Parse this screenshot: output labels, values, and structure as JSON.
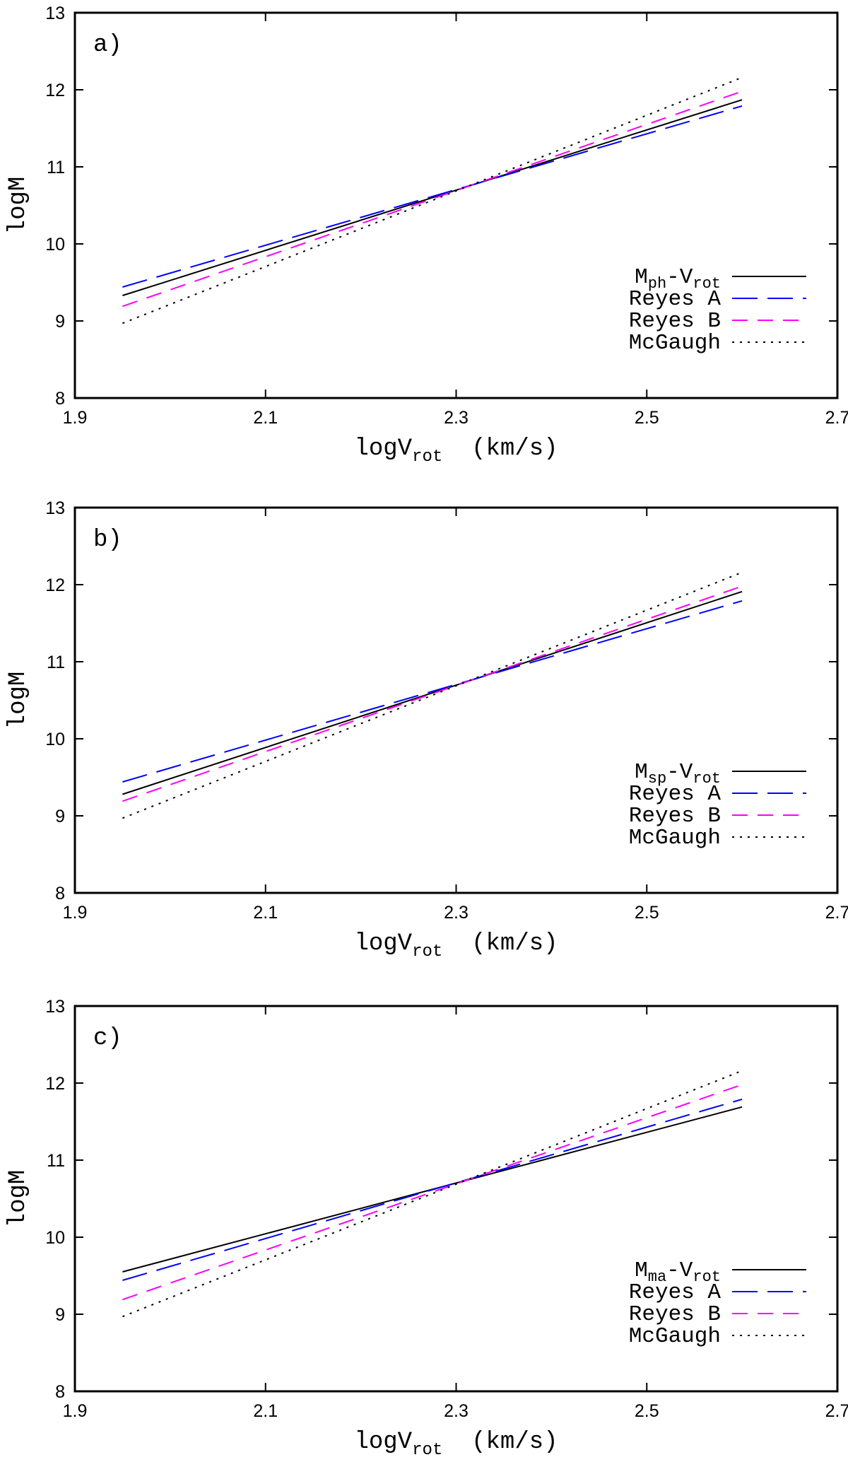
{
  "chart_data": [
    {
      "type": "line",
      "panel_label": "a)",
      "xlabel": {
        "main": "logV",
        "sub": "rot",
        "unit": "(km/s)"
      },
      "ylabel": "logM",
      "xlim": [
        1.9,
        2.7
      ],
      "ylim": [
        8,
        13
      ],
      "xticks": [
        "1.9",
        "2.1",
        "2.3",
        "2.5",
        "2.7"
      ],
      "yticks": [
        "8",
        "9",
        "10",
        "11",
        "12",
        "13"
      ],
      "legend_position": "bottom-right",
      "series": [
        {
          "name": "Mph-Vrot",
          "legend": {
            "m": "M",
            "msub": "ph",
            "v": "-V",
            "vsub": "rot"
          },
          "style": "solid",
          "color": "#000000",
          "x": [
            1.95,
            2.6
          ],
          "y": [
            9.33,
            11.87
          ]
        },
        {
          "name": "Reyes A",
          "style": "longdash",
          "color": "#0000ff",
          "x": [
            1.95,
            2.6
          ],
          "y": [
            9.44,
            11.79
          ]
        },
        {
          "name": "Reyes B",
          "style": "dash",
          "color": "#ff00ff",
          "x": [
            1.95,
            2.6
          ],
          "y": [
            9.19,
            11.98
          ]
        },
        {
          "name": "McGaugh",
          "style": "dotted",
          "color": "#000000",
          "x": [
            1.95,
            2.6
          ],
          "y": [
            8.97,
            12.16
          ]
        }
      ]
    },
    {
      "type": "line",
      "panel_label": "b)",
      "xlabel": {
        "main": "logV",
        "sub": "rot",
        "unit": "(km/s)"
      },
      "ylabel": "logM",
      "xlim": [
        1.9,
        2.7
      ],
      "ylim": [
        8,
        13
      ],
      "xticks": [
        "1.9",
        "2.1",
        "2.3",
        "2.5",
        "2.7"
      ],
      "yticks": [
        "8",
        "9",
        "10",
        "11",
        "12",
        "13"
      ],
      "legend_position": "bottom-right",
      "series": [
        {
          "name": "Msp-Vrot",
          "legend": {
            "m": "M",
            "msub": "sp",
            "v": "-V",
            "vsub": "rot"
          },
          "style": "solid",
          "color": "#000000",
          "x": [
            1.95,
            2.6
          ],
          "y": [
            9.28,
            11.91
          ]
        },
        {
          "name": "Reyes A",
          "style": "longdash",
          "color": "#0000ff",
          "x": [
            1.95,
            2.6
          ],
          "y": [
            9.44,
            11.79
          ]
        },
        {
          "name": "Reyes B",
          "style": "dash",
          "color": "#ff00ff",
          "x": [
            1.95,
            2.6
          ],
          "y": [
            9.19,
            11.98
          ]
        },
        {
          "name": "McGaugh",
          "style": "dotted",
          "color": "#000000",
          "x": [
            1.95,
            2.6
          ],
          "y": [
            8.97,
            12.16
          ]
        }
      ]
    },
    {
      "type": "line",
      "panel_label": "c)",
      "xlabel": {
        "main": "logV",
        "sub": "rot",
        "unit": "(km/s)"
      },
      "ylabel": "logM",
      "xlim": [
        1.9,
        2.7
      ],
      "ylim": [
        8,
        13
      ],
      "xticks": [
        "1.9",
        "2.1",
        "2.3",
        "2.5",
        "2.7"
      ],
      "yticks": [
        "8",
        "9",
        "10",
        "11",
        "12",
        "13"
      ],
      "legend_position": "bottom-right",
      "series": [
        {
          "name": "Mma-Vrot",
          "legend": {
            "m": "M",
            "msub": "ma",
            "v": "-V",
            "vsub": "rot"
          },
          "style": "solid",
          "color": "#000000",
          "x": [
            1.95,
            2.6
          ],
          "y": [
            9.55,
            11.69
          ]
        },
        {
          "name": "Reyes A",
          "style": "longdash",
          "color": "#0000ff",
          "x": [
            1.95,
            2.6
          ],
          "y": [
            9.44,
            11.79
          ]
        },
        {
          "name": "Reyes B",
          "style": "dash",
          "color": "#ff00ff",
          "x": [
            1.95,
            2.6
          ],
          "y": [
            9.19,
            11.98
          ]
        },
        {
          "name": "McGaugh",
          "style": "dotted",
          "color": "#000000",
          "x": [
            1.95,
            2.6
          ],
          "y": [
            8.97,
            12.16
          ]
        }
      ]
    }
  ]
}
